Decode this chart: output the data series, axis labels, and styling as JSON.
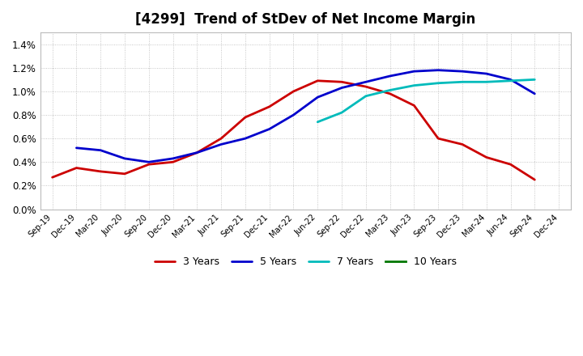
{
  "title": "[4299]  Trend of StDev of Net Income Margin",
  "title_fontsize": 12,
  "background_color": "#ffffff",
  "grid_color": "#999999",
  "ylim": [
    0.0,
    0.015
  ],
  "yticks": [
    0.0,
    0.002,
    0.004,
    0.006,
    0.008,
    0.01,
    0.012,
    0.014
  ],
  "series": {
    "3 Years": {
      "color": "#cc0000",
      "data": [
        [
          "Sep-19",
          0.0027
        ],
        [
          "Dec-19",
          0.0035
        ],
        [
          "Mar-20",
          0.0032
        ],
        [
          "Jun-20",
          0.003
        ],
        [
          "Sep-20",
          0.0038
        ],
        [
          "Dec-20",
          0.004
        ],
        [
          "Mar-21",
          0.0048
        ],
        [
          "Jun-21",
          0.006
        ],
        [
          "Sep-21",
          0.0078
        ],
        [
          "Dec-21",
          0.0087
        ],
        [
          "Mar-22",
          0.01
        ],
        [
          "Jun-22",
          0.0109
        ],
        [
          "Sep-22",
          0.0108
        ],
        [
          "Dec-22",
          0.0104
        ],
        [
          "Mar-23",
          0.0098
        ],
        [
          "Jun-23",
          0.0088
        ],
        [
          "Sep-23",
          0.006
        ],
        [
          "Dec-23",
          0.0055
        ],
        [
          "Mar-24",
          0.0044
        ],
        [
          "Jun-24",
          0.0038
        ],
        [
          "Sep-24",
          0.0025
        ],
        [
          "Dec-24",
          null
        ]
      ]
    },
    "5 Years": {
      "color": "#0000cc",
      "data": [
        [
          "Sep-19",
          null
        ],
        [
          "Dec-19",
          0.0052
        ],
        [
          "Mar-20",
          0.005
        ],
        [
          "Jun-20",
          0.0043
        ],
        [
          "Sep-20",
          0.004
        ],
        [
          "Dec-20",
          0.0043
        ],
        [
          "Mar-21",
          0.0048
        ],
        [
          "Jun-21",
          0.0055
        ],
        [
          "Sep-21",
          0.006
        ],
        [
          "Dec-21",
          0.0068
        ],
        [
          "Mar-22",
          0.008
        ],
        [
          "Jun-22",
          0.0095
        ],
        [
          "Sep-22",
          0.0103
        ],
        [
          "Dec-22",
          0.0108
        ],
        [
          "Mar-23",
          0.0113
        ],
        [
          "Jun-23",
          0.0117
        ],
        [
          "Sep-23",
          0.0118
        ],
        [
          "Dec-23",
          0.0117
        ],
        [
          "Mar-24",
          0.0115
        ],
        [
          "Jun-24",
          0.011
        ],
        [
          "Sep-24",
          0.0098
        ],
        [
          "Dec-24",
          null
        ]
      ]
    },
    "7 Years": {
      "color": "#00bbbb",
      "data": [
        [
          "Sep-19",
          null
        ],
        [
          "Dec-19",
          null
        ],
        [
          "Mar-20",
          null
        ],
        [
          "Jun-20",
          null
        ],
        [
          "Sep-20",
          null
        ],
        [
          "Dec-20",
          null
        ],
        [
          "Mar-21",
          null
        ],
        [
          "Jun-21",
          null
        ],
        [
          "Sep-21",
          null
        ],
        [
          "Dec-21",
          null
        ],
        [
          "Mar-22",
          null
        ],
        [
          "Jun-22",
          0.0074
        ],
        [
          "Sep-22",
          0.0082
        ],
        [
          "Dec-22",
          0.0096
        ],
        [
          "Mar-23",
          0.0101
        ],
        [
          "Jun-23",
          0.0105
        ],
        [
          "Sep-23",
          0.0107
        ],
        [
          "Dec-23",
          0.0108
        ],
        [
          "Mar-24",
          0.0108
        ],
        [
          "Jun-24",
          0.0109
        ],
        [
          "Sep-24",
          0.011
        ],
        [
          "Dec-24",
          null
        ]
      ]
    },
    "10 Years": {
      "color": "#007700",
      "data": [
        [
          "Sep-19",
          null
        ],
        [
          "Dec-19",
          null
        ],
        [
          "Mar-20",
          null
        ],
        [
          "Jun-20",
          null
        ],
        [
          "Sep-20",
          null
        ],
        [
          "Dec-20",
          null
        ],
        [
          "Mar-21",
          null
        ],
        [
          "Jun-21",
          null
        ],
        [
          "Sep-21",
          null
        ],
        [
          "Dec-21",
          null
        ],
        [
          "Mar-22",
          null
        ],
        [
          "Jun-22",
          null
        ],
        [
          "Sep-22",
          null
        ],
        [
          "Dec-22",
          null
        ],
        [
          "Mar-23",
          null
        ],
        [
          "Jun-23",
          null
        ],
        [
          "Sep-23",
          null
        ],
        [
          "Dec-23",
          null
        ],
        [
          "Mar-24",
          null
        ],
        [
          "Jun-24",
          null
        ],
        [
          "Sep-24",
          null
        ],
        [
          "Dec-24",
          null
        ]
      ]
    }
  },
  "xtick_labels": [
    "Sep-19",
    "Dec-19",
    "Mar-20",
    "Jun-20",
    "Sep-20",
    "Dec-20",
    "Mar-21",
    "Jun-21",
    "Sep-21",
    "Dec-21",
    "Mar-22",
    "Jun-22",
    "Sep-22",
    "Dec-22",
    "Mar-23",
    "Jun-23",
    "Sep-23",
    "Dec-23",
    "Mar-24",
    "Jun-24",
    "Sep-24",
    "Dec-24"
  ],
  "legend_order": [
    "3 Years",
    "5 Years",
    "7 Years",
    "10 Years"
  ],
  "linewidth": 2.0
}
